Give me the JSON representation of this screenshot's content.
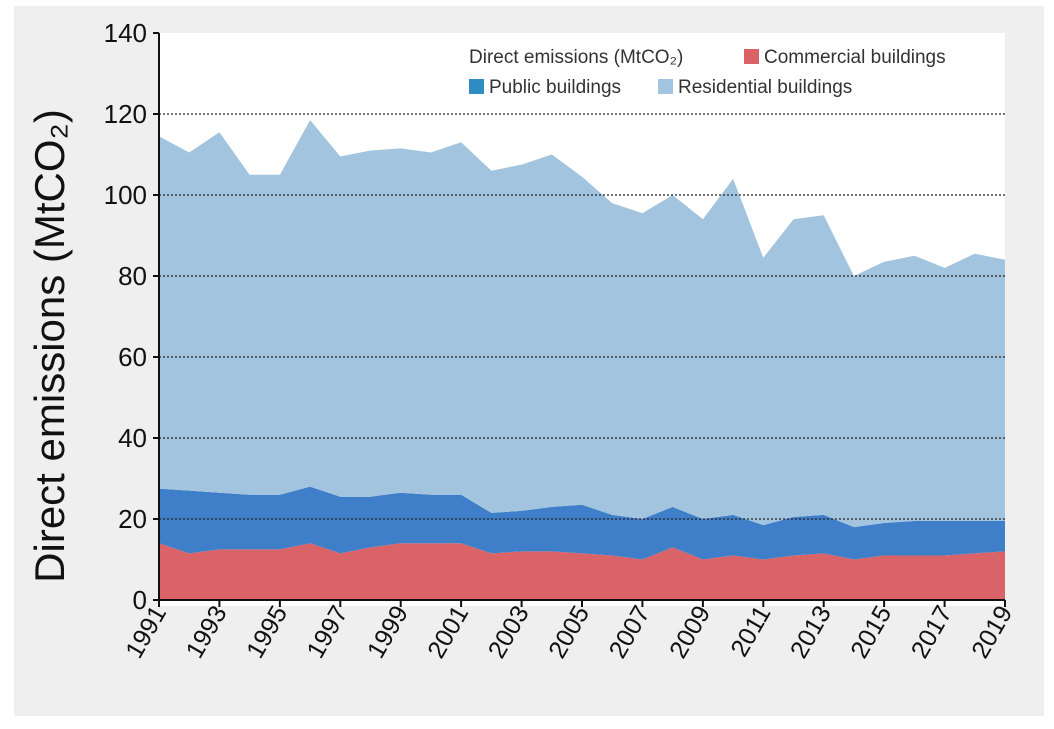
{
  "chart_data": {
    "type": "area",
    "stacked": true,
    "x": [
      1991,
      1992,
      1993,
      1994,
      1995,
      1996,
      1997,
      1998,
      1999,
      2000,
      2001,
      2002,
      2003,
      2004,
      2005,
      2006,
      2007,
      2008,
      2009,
      2010,
      2011,
      2012,
      2013,
      2014,
      2015,
      2016,
      2017,
      2018,
      2019
    ],
    "series": [
      {
        "name": "Commercial buildings",
        "color": "#d96366",
        "values": [
          14,
          11.5,
          12.5,
          12.5,
          12.5,
          14,
          11.5,
          13,
          14,
          14,
          14,
          11.5,
          12,
          12,
          11.5,
          11,
          10,
          13,
          10,
          11,
          10,
          11,
          11.5,
          10,
          11,
          11,
          11,
          11.5,
          12
        ]
      },
      {
        "name": "Public buildings",
        "color": "#3f7fc9",
        "values": [
          13.5,
          15.5,
          14,
          13.5,
          13.5,
          14,
          14,
          12.5,
          12.5,
          12,
          12,
          10,
          10,
          11,
          12,
          10,
          10,
          10,
          10,
          10,
          8.5,
          9.5,
          9.5,
          8,
          8,
          8.5,
          8.5,
          8,
          7.5
        ]
      },
      {
        "name": "Residential buildings",
        "color": "#a2c4de",
        "values": [
          87,
          83.5,
          89,
          79,
          79,
          90.5,
          84,
          85.5,
          85,
          84.5,
          87,
          84.5,
          85.5,
          87,
          81,
          77,
          75.5,
          77,
          74,
          83,
          66,
          73.5,
          74,
          62,
          64.5,
          65.5,
          62.5,
          66,
          64.5
        ]
      }
    ],
    "legend_title": "Direct emissions (MtCO₂)",
    "legend_entries": [
      "Commercial buildings",
      "Public buildings",
      "Residential buildings"
    ],
    "legend_position": "top-right",
    "title": "",
    "xlabel": "",
    "ylabel": "Direct emissions (MtCO₂)",
    "ylim": [
      0,
      140
    ],
    "yticks": [
      "0",
      "20",
      "40",
      "60",
      "80",
      "100",
      "120",
      "140"
    ],
    "xticks": [
      "1991",
      "1993",
      "1995",
      "1997",
      "1999",
      "2001",
      "2003",
      "2005",
      "2007",
      "2009",
      "2011",
      "2013",
      "2015",
      "2017",
      "2019"
    ],
    "grid": "horizontal dotted"
  }
}
